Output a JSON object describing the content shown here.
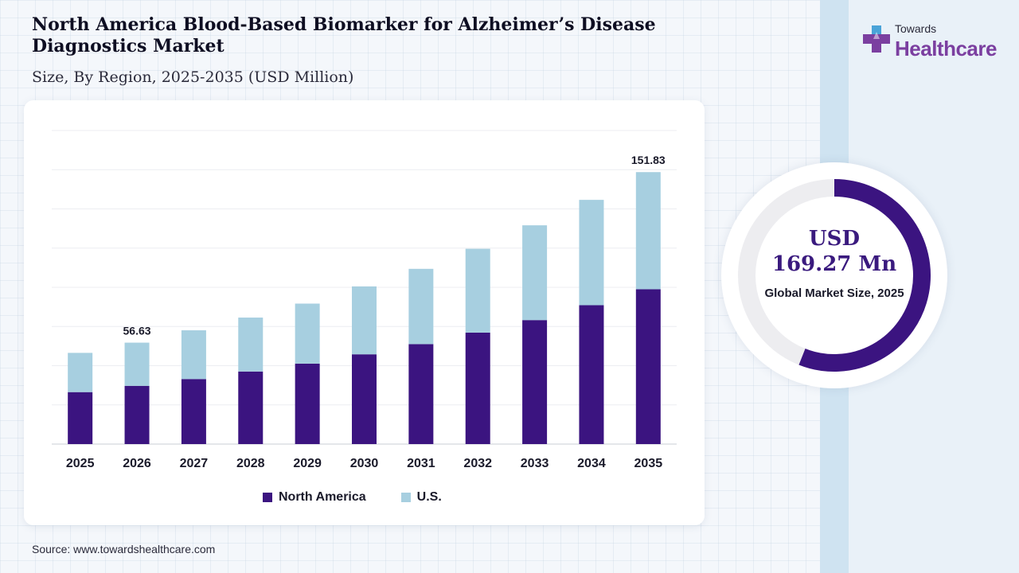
{
  "header": {
    "title": "North America Blood-Based Biomarker for Alzheimer’s Disease Diagnostics Market",
    "subtitle": "Size, By Region, 2025-2035 (USD Million)"
  },
  "logo": {
    "line1": "Towards",
    "line2": "Healthcare"
  },
  "colors": {
    "north_america": "#3b1480",
    "us": "#a7cfe0",
    "donut_ring": "#3b1480",
    "donut_track": "#ededf0",
    "logo_accent": "#7b3fa0"
  },
  "chart_data": {
    "type": "bar",
    "stacked": true,
    "categories": [
      "2025",
      "2026",
      "2027",
      "2028",
      "2029",
      "2030",
      "2031",
      "2032",
      "2033",
      "2034",
      "2035"
    ],
    "series": [
      {
        "name": "North America",
        "values": [
          29.0,
          32.5,
          36.3,
          40.5,
          44.9,
          50.1,
          55.8,
          62.2,
          69.2,
          77.5,
          86.4
        ]
      },
      {
        "name": "U.S.",
        "values": [
          21.9,
          24.1,
          27.2,
          30.1,
          33.5,
          37.9,
          42.0,
          46.8,
          52.9,
          58.8,
          65.4
        ]
      }
    ],
    "data_labels": [
      {
        "category": "2026",
        "text": "56.63"
      },
      {
        "category": "2035",
        "text": "151.83"
      }
    ],
    "ylim": [
      0,
      175
    ],
    "grid": true,
    "legend": "bottom-center",
    "xlabel": "",
    "ylabel": ""
  },
  "legend": {
    "north_america": "North America",
    "us": "U.S."
  },
  "summary": {
    "value_line1": "USD",
    "value_line2": "169.27 Mn",
    "label": "Global Market Size, 2025",
    "ring_fraction": 0.56
  },
  "source": "Source: www.towardshealthcare.com"
}
